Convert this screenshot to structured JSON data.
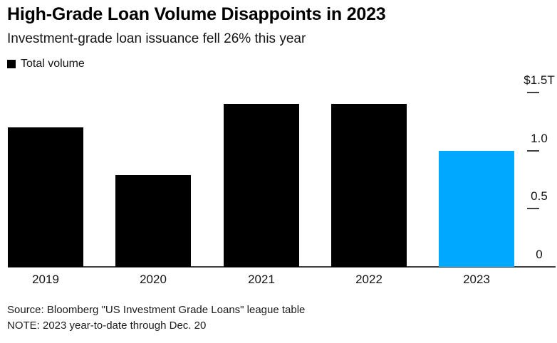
{
  "header": {
    "title": "High-Grade Loan Volume Disappoints in 2023",
    "subtitle": "Investment-grade loan issuance fell 26% this year"
  },
  "legend": {
    "items": [
      {
        "label": "Total volume",
        "swatch_color": "#000000"
      }
    ]
  },
  "chart_data": {
    "type": "bar",
    "title": "High-Grade Loan Volume Disappoints in 2023",
    "subtitle": "Investment-grade loan issuance fell 26% this year",
    "categories": [
      "2019",
      "2020",
      "2021",
      "2022",
      "2023"
    ],
    "series": [
      {
        "name": "Total volume",
        "values": [
          1.2,
          0.79,
          1.4,
          1.4,
          1.0
        ]
      }
    ],
    "unit_hint": "$ trillions (from axis label $1.5T)",
    "bar_colors": [
      "#000000",
      "#000000",
      "#000000",
      "#000000",
      "#00a9ff"
    ],
    "highlight_color": "#00a9ff",
    "axis_color": "#3f3f3f",
    "ylim": [
      0,
      1.5
    ],
    "yticks": {
      "values": [
        0,
        0.5,
        1.0,
        1.5
      ],
      "labels": [
        "0",
        "0.5",
        "1.0",
        "$1.5T"
      ]
    },
    "xlabel": "",
    "ylabel": "",
    "grid": false,
    "legend_position": "top-left",
    "y_axis_side": "right"
  },
  "footer": {
    "source_line": "Source: Bloomberg \"US Investment Grade Loans\" league table",
    "note_line": "NOTE: 2023 year-to-date through Dec. 20"
  }
}
